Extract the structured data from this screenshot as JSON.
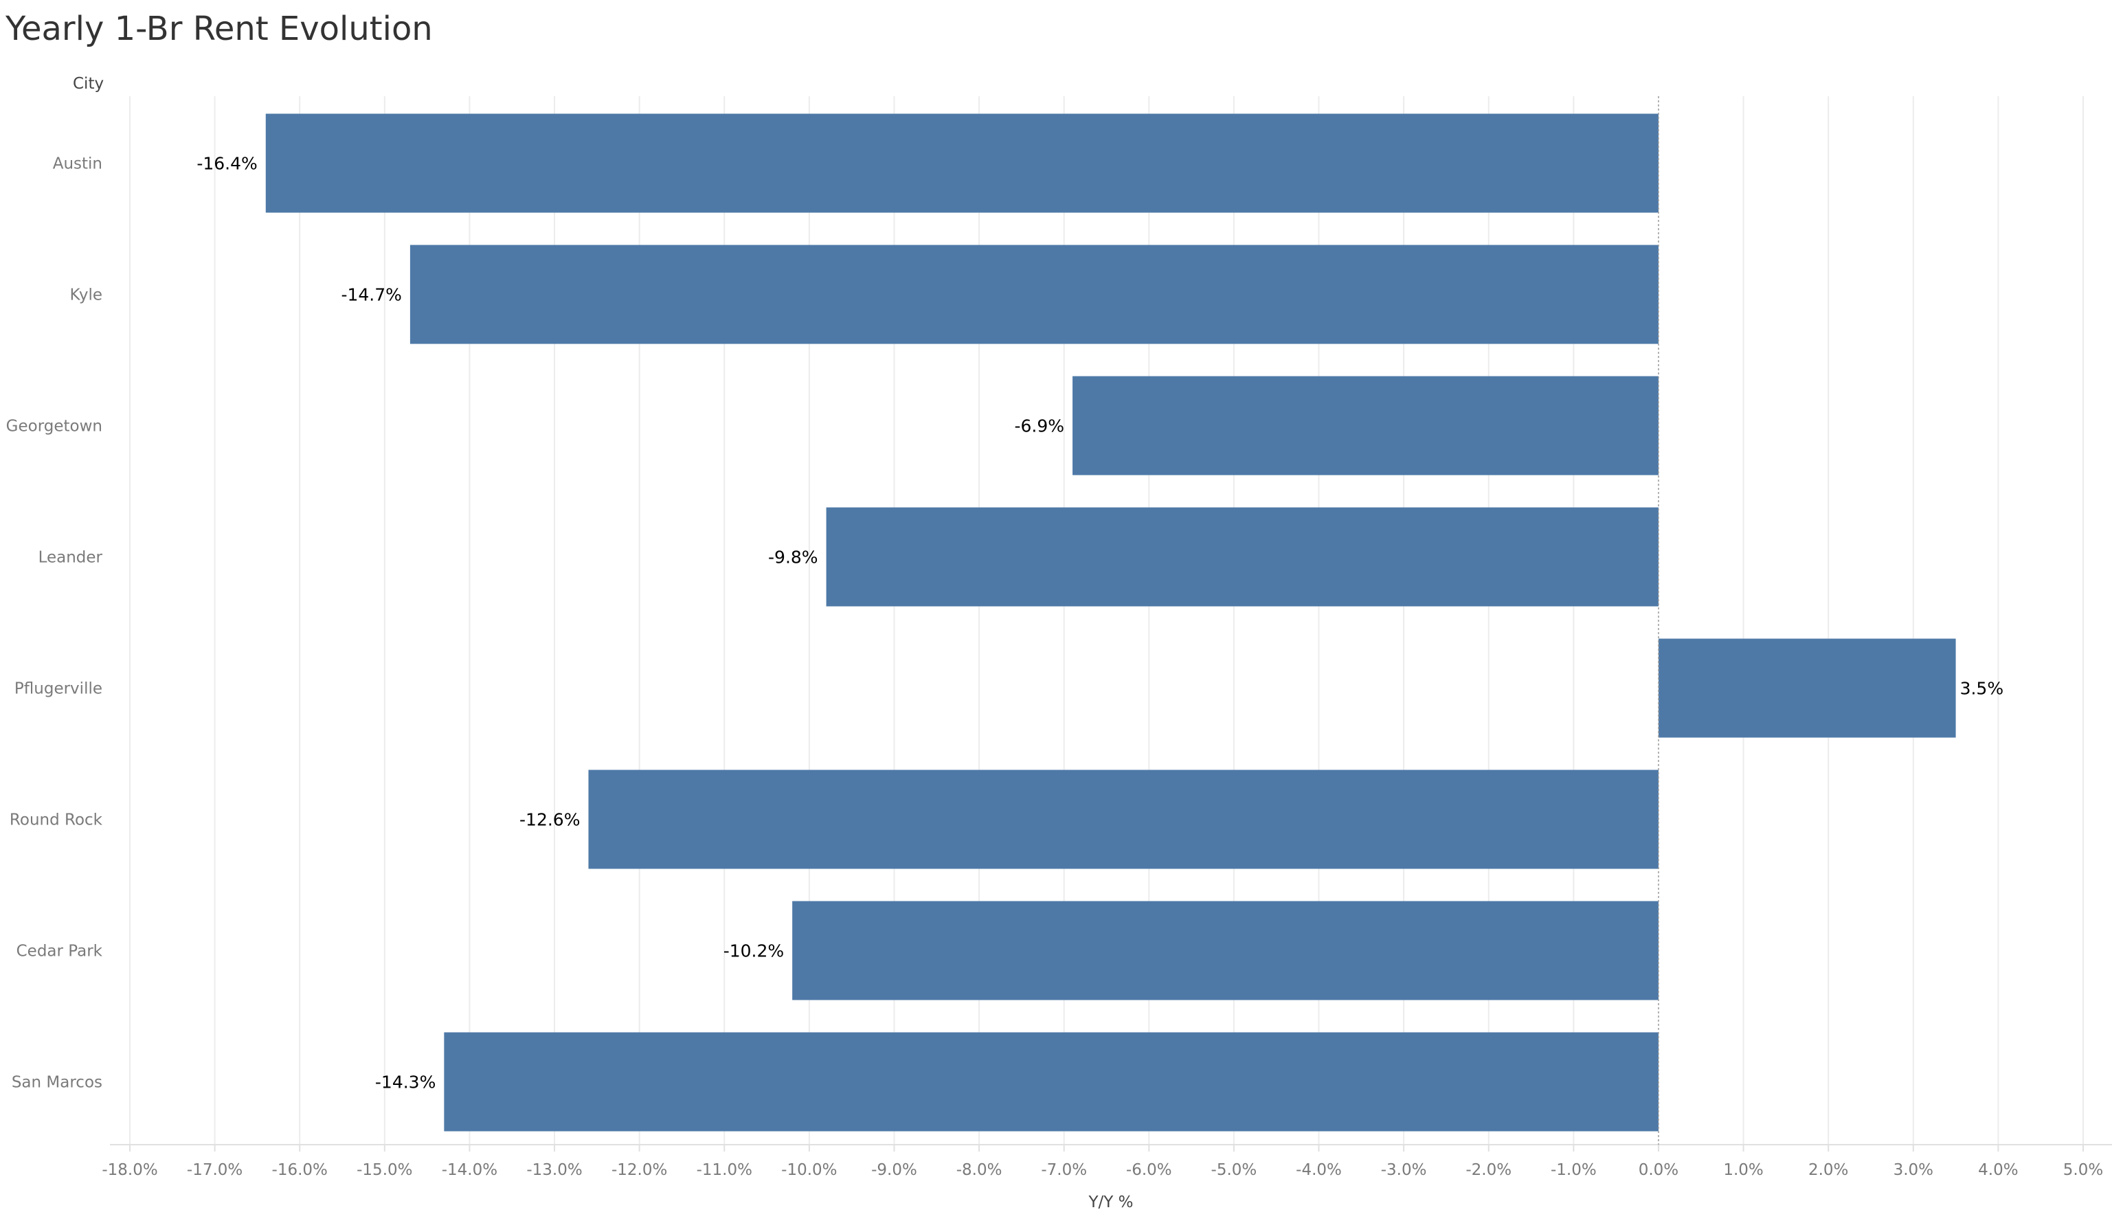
{
  "chart_data": {
    "type": "bar",
    "orientation": "horizontal",
    "title": "Yearly 1-Br Rent Evolution",
    "row_header": "City",
    "xlabel": "Y/Y %",
    "categories": [
      "Austin",
      "Kyle",
      "Georgetown",
      "Leander",
      "Pflugerville",
      "Round Rock",
      "Cedar Park",
      "San Marcos"
    ],
    "values": [
      -16.4,
      -14.7,
      -6.9,
      -9.8,
      3.5,
      -12.6,
      -10.2,
      -14.3
    ],
    "value_labels": [
      "-16.4%",
      "-14.7%",
      "-6.9%",
      "-9.8%",
      "3.5%",
      "-12.6%",
      "-10.2%",
      "-14.3%"
    ],
    "xlim": [
      -18,
      5
    ],
    "xticks": [
      -18,
      -17,
      -16,
      -15,
      -14,
      -13,
      -12,
      -11,
      -10,
      -9,
      -8,
      -7,
      -6,
      -5,
      -4,
      -3,
      -2,
      -1,
      0,
      1,
      2,
      3,
      4,
      5
    ],
    "xtick_labels": [
      "-18.0%",
      "-17.0%",
      "-16.0%",
      "-15.0%",
      "-14.0%",
      "-13.0%",
      "-12.0%",
      "-11.0%",
      "-10.0%",
      "-9.0%",
      "-8.0%",
      "-7.0%",
      "-6.0%",
      "-5.0%",
      "-4.0%",
      "-3.0%",
      "-2.0%",
      "-1.0%",
      "0.0%",
      "1.0%",
      "2.0%",
      "3.0%",
      "4.0%",
      "5.0%"
    ],
    "grid": true,
    "colors": {
      "bar": "#4e79a7"
    }
  }
}
